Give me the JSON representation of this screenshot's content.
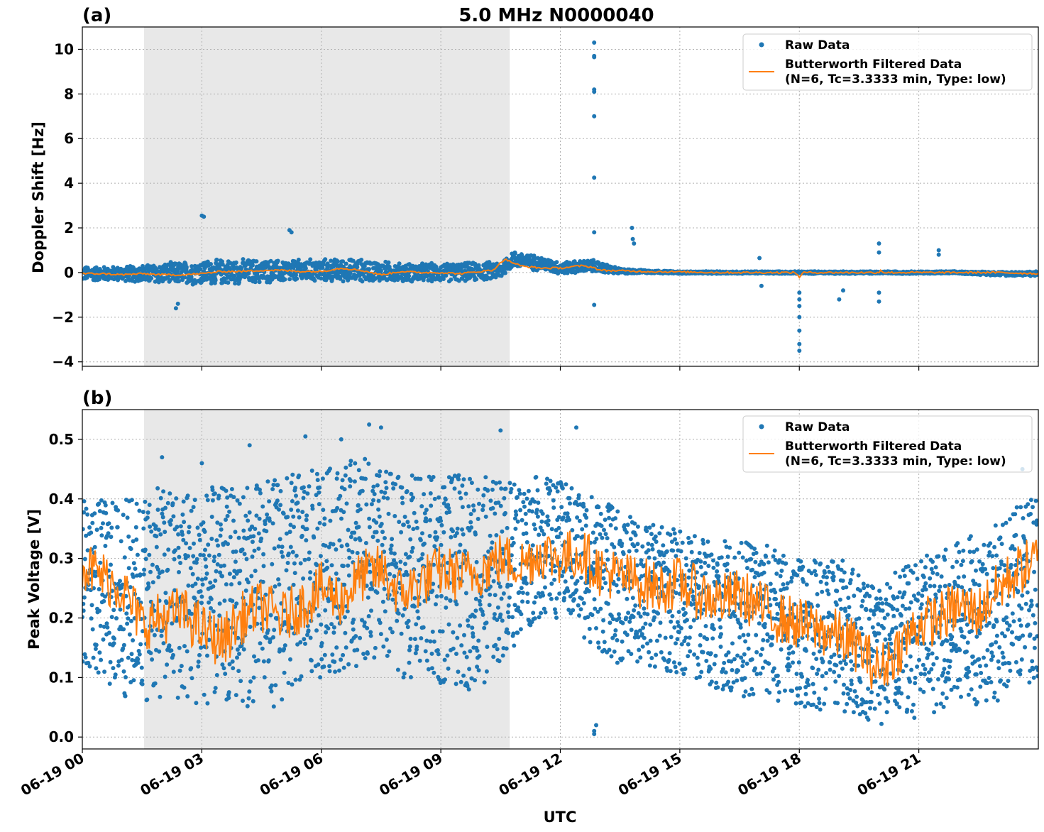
{
  "figure": {
    "title": "5.0 MHz N0000040",
    "xlabel": "UTC",
    "x_tick_labels": [
      "06-19 00",
      "06-19 03",
      "06-19 06",
      "06-19 09",
      "06-19 12",
      "06-19 15",
      "06-19 18",
      "06-19 21"
    ],
    "shaded_interval_hours": [
      1.55,
      10.73
    ],
    "colors": {
      "raw": "#1f77b4",
      "filtered": "#ff7f0e",
      "shade": "#e8e8e8",
      "grid": "#b0b0b0"
    }
  },
  "chart_data": [
    {
      "type": "scatter",
      "panel_label": "(a)",
      "ylabel": "Doppler Shift [Hz]",
      "xlim_hours": [
        0,
        24
      ],
      "ylim": [
        -4.2,
        11
      ],
      "y_ticks": [
        -4,
        -2,
        0,
        2,
        4,
        6,
        8,
        10
      ],
      "y_tick_labels": [
        "−4",
        "−2",
        "0",
        "2",
        "4",
        "6",
        "8",
        "10"
      ],
      "grid": true,
      "legend_placement": "top-right",
      "legend": [
        "Raw Data",
        "Butterworth Filtered Data",
        "(N=6, Tc=3.3333 min, Type: low)"
      ],
      "series": [
        {
          "name": "Raw Data",
          "kind": "points",
          "band_x_hours": [
            0,
            1,
            1.6,
            2,
            3,
            4,
            5,
            6,
            7,
            8,
            9,
            10,
            10.5,
            10.8,
            11.5,
            12,
            12.8,
            13.5,
            14,
            15,
            16,
            17,
            18,
            19,
            20,
            21,
            22,
            23,
            24
          ],
          "band_center": [
            -0.05,
            -0.05,
            -0.05,
            -0.05,
            0.0,
            0.05,
            0.05,
            0.1,
            0.1,
            0.0,
            0.0,
            0.05,
            0.1,
            0.6,
            0.4,
            0.2,
            0.3,
            0.05,
            0.05,
            0.0,
            0.0,
            0.0,
            0.0,
            0.0,
            0.0,
            0.0,
            0.0,
            -0.05,
            -0.05
          ],
          "band_halfwidth": [
            0.35,
            0.35,
            0.45,
            0.5,
            0.6,
            0.6,
            0.55,
            0.55,
            0.55,
            0.45,
            0.45,
            0.45,
            0.45,
            0.4,
            0.35,
            0.3,
            0.3,
            0.15,
            0.08,
            0.06,
            0.06,
            0.06,
            0.06,
            0.06,
            0.06,
            0.06,
            0.06,
            0.1,
            0.12
          ],
          "outliers_x_hours": [
            12.85,
            12.85,
            12.85,
            12.85,
            12.85,
            12.85,
            12.85,
            12.85,
            12.85,
            3.0,
            3.05,
            5.2,
            5.25,
            13.8,
            13.82,
            13.85,
            18.0,
            18.0,
            18.0,
            18.0,
            18.0,
            18.0,
            18.0,
            2.35,
            2.4,
            20.0,
            20.0,
            20.0,
            20.0,
            19.0,
            19.1,
            21.5,
            21.5,
            17.0,
            17.05
          ],
          "outliers_y": [
            10.3,
            9.7,
            9.65,
            8.2,
            8.1,
            7.0,
            4.25,
            -1.45,
            1.8,
            2.55,
            2.5,
            1.9,
            1.8,
            2.0,
            1.5,
            1.3,
            -3.5,
            -3.2,
            -2.6,
            -2.0,
            -1.5,
            -1.2,
            -0.9,
            -1.6,
            -1.4,
            1.3,
            0.9,
            -0.9,
            -1.3,
            -1.2,
            -0.8,
            1.0,
            0.8,
            0.65,
            -0.6
          ]
        },
        {
          "name": "Butterworth Filtered Data",
          "kind": "line",
          "x_hours": [
            0,
            0.5,
            1,
            1.5,
            2,
            2.5,
            3,
            3.5,
            4,
            4.5,
            5,
            5.5,
            6,
            6.5,
            7,
            7.5,
            8,
            8.5,
            9,
            9.5,
            10,
            10.3,
            10.6,
            10.8,
            11,
            11.5,
            12,
            12.5,
            12.8,
            13,
            13.5,
            14,
            15,
            16,
            17,
            17.9,
            18,
            18.1,
            19,
            20,
            20.05,
            20.1,
            21,
            22,
            23,
            24
          ],
          "y": [
            -0.05,
            -0.05,
            -0.1,
            -0.05,
            -0.1,
            -0.1,
            -0.05,
            0.05,
            0.05,
            0.1,
            0.1,
            0.05,
            0.05,
            0.2,
            0.1,
            -0.1,
            0.05,
            0.0,
            0.0,
            -0.05,
            0.05,
            0.1,
            0.6,
            0.45,
            0.3,
            0.2,
            0.2,
            0.3,
            0.25,
            0.1,
            0.08,
            0.05,
            0.03,
            0.0,
            0.0,
            0.0,
            -0.2,
            0.0,
            0.0,
            0.0,
            0.15,
            0.0,
            0.0,
            0.0,
            0.0,
            -0.05
          ]
        }
      ]
    },
    {
      "type": "scatter",
      "panel_label": "(b)",
      "ylabel": "Peak Voltage [V]",
      "xlim_hours": [
        0,
        24
      ],
      "ylim": [
        -0.02,
        0.55
      ],
      "y_ticks": [
        0.0,
        0.1,
        0.2,
        0.3,
        0.4,
        0.5
      ],
      "y_tick_labels": [
        "0.0",
        "0.1",
        "0.2",
        "0.3",
        "0.4",
        "0.5"
      ],
      "grid": true,
      "legend_placement": "top-right",
      "legend": [
        "Raw Data",
        "Butterworth Filtered Data",
        "(N=6, Tc=3.3333 min, Type: low)"
      ],
      "series": [
        {
          "name": "Raw Data",
          "kind": "points",
          "band_x_hours": [
            0,
            1,
            2,
            3,
            4,
            5,
            6,
            7,
            8,
            9,
            10,
            10.8,
            11.5,
            12,
            12.8,
            13.5,
            14,
            15,
            16,
            17,
            18,
            19,
            19.5,
            20,
            21,
            22,
            23,
            24
          ],
          "band_low": [
            0.12,
            0.06,
            0.06,
            0.05,
            0.05,
            0.05,
            0.1,
            0.12,
            0.1,
            0.08,
            0.08,
            0.15,
            0.2,
            0.2,
            0.15,
            0.12,
            0.12,
            0.1,
            0.08,
            0.06,
            0.05,
            0.04,
            0.03,
            0.02,
            0.03,
            0.05,
            0.06,
            0.1
          ],
          "band_high": [
            0.4,
            0.4,
            0.42,
            0.42,
            0.42,
            0.44,
            0.45,
            0.47,
            0.44,
            0.44,
            0.44,
            0.43,
            0.44,
            0.43,
            0.41,
            0.38,
            0.36,
            0.35,
            0.33,
            0.33,
            0.3,
            0.3,
            0.28,
            0.26,
            0.3,
            0.33,
            0.36,
            0.42
          ],
          "outliers_x_hours": [
            5.6,
            6.5,
            7.2,
            7.5,
            10.5,
            12.4,
            12.85,
            12.85,
            12.9,
            23.6,
            2.0,
            3.0,
            4.2
          ],
          "outliers_y": [
            0.505,
            0.5,
            0.525,
            0.52,
            0.515,
            0.52,
            0.005,
            0.01,
            0.02,
            0.45,
            0.47,
            0.46,
            0.49
          ]
        },
        {
          "name": "Butterworth Filtered Data",
          "kind": "line",
          "x_hours": [
            0,
            0.5,
            1,
            1.5,
            2,
            2.5,
            3,
            3.5,
            4,
            4.5,
            5,
            5.5,
            6,
            6.5,
            7,
            7.5,
            8,
            8.5,
            9,
            9.5,
            10,
            10.5,
            11,
            11.5,
            12,
            12.5,
            13,
            13.5,
            14,
            14.5,
            15,
            15.5,
            16,
            16.5,
            17,
            17.5,
            18,
            18.5,
            19,
            19.5,
            20,
            20.5,
            21,
            21.5,
            22,
            22.5,
            23,
            23.5,
            24
          ],
          "y": [
            0.29,
            0.27,
            0.25,
            0.19,
            0.2,
            0.21,
            0.18,
            0.16,
            0.2,
            0.22,
            0.2,
            0.22,
            0.25,
            0.23,
            0.27,
            0.28,
            0.24,
            0.26,
            0.28,
            0.27,
            0.28,
            0.3,
            0.29,
            0.31,
            0.3,
            0.31,
            0.28,
            0.27,
            0.26,
            0.25,
            0.26,
            0.24,
            0.23,
            0.24,
            0.22,
            0.2,
            0.19,
            0.18,
            0.17,
            0.15,
            0.11,
            0.15,
            0.19,
            0.2,
            0.22,
            0.21,
            0.25,
            0.28,
            0.3
          ]
        }
      ]
    }
  ]
}
